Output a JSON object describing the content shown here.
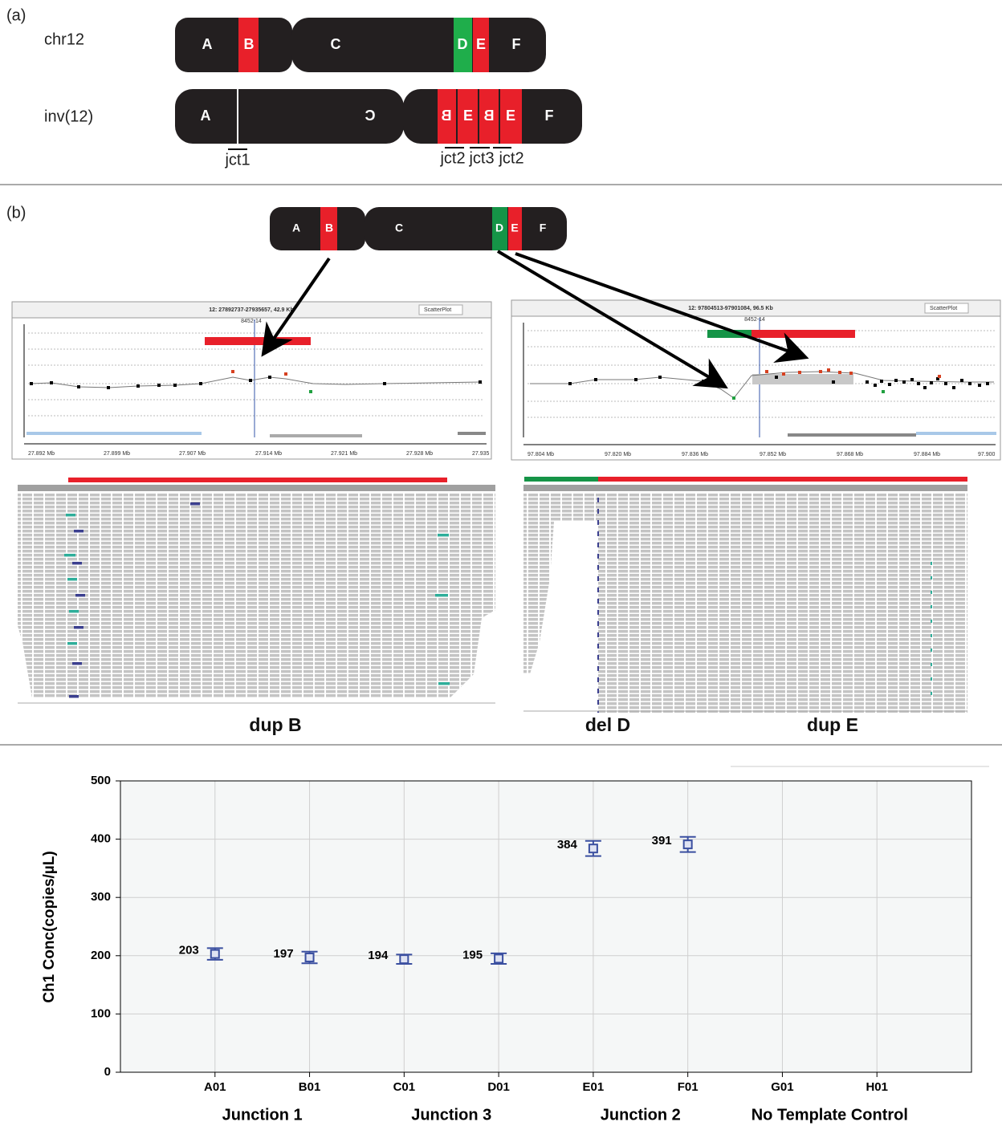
{
  "panel_a": {
    "label": "(a)",
    "chr12": {
      "name": "chr12",
      "segments": [
        "A",
        "B",
        "C",
        "D",
        "E",
        "F"
      ]
    },
    "inv12": {
      "name": "inv(12)",
      "segments": [
        "A",
        "C",
        "B",
        "E",
        "B",
        "E",
        "F"
      ]
    },
    "junctions": [
      "jct1",
      "jct2",
      "jct3",
      "jct2"
    ]
  },
  "panel_b": {
    "label": "(b)",
    "segments": [
      "A",
      "B",
      "C",
      "D",
      "E",
      "F"
    ],
    "left_browser": {
      "region": "12: 27892737-27935657, 42.9 Kb",
      "view": "ScatterPlot",
      "sample": "8452-14",
      "ticks": [
        "27.892 Mb",
        "27.899 Mb",
        "27.907 Mb",
        "27.914 Mb",
        "27.921 Mb",
        "27.928 Mb",
        "27.935"
      ]
    },
    "right_browser": {
      "region": "12: 97804513-97901084, 96.5 Kb",
      "view": "ScatterPlot",
      "sample": "8452-14",
      "ticks": [
        "97.804 Mb",
        "97.820 Mb",
        "97.836 Mb",
        "97.852 Mb",
        "97.868 Mb",
        "97.884 Mb",
        "97.900"
      ]
    },
    "captions": [
      "dup B",
      "del D",
      "dup E"
    ]
  },
  "chart_data": {
    "type": "errorbar",
    "ylabel": "Ch1 Conc(copies/µL)",
    "categories": [
      "A01",
      "B01",
      "C01",
      "D01",
      "E01",
      "F01",
      "G01",
      "H01"
    ],
    "values": [
      203,
      197,
      194,
      195,
      384,
      391,
      null,
      null
    ],
    "errors": [
      10,
      10,
      8,
      9,
      13,
      13,
      null,
      null
    ],
    "groups": [
      "Junction 1",
      "Junction 3",
      "Junction 2",
      "No Template Control"
    ],
    "ylim": [
      0,
      500
    ],
    "yticks": [
      0,
      100,
      200,
      300,
      400,
      500
    ],
    "color": "#3a4fa0",
    "grid": true
  }
}
